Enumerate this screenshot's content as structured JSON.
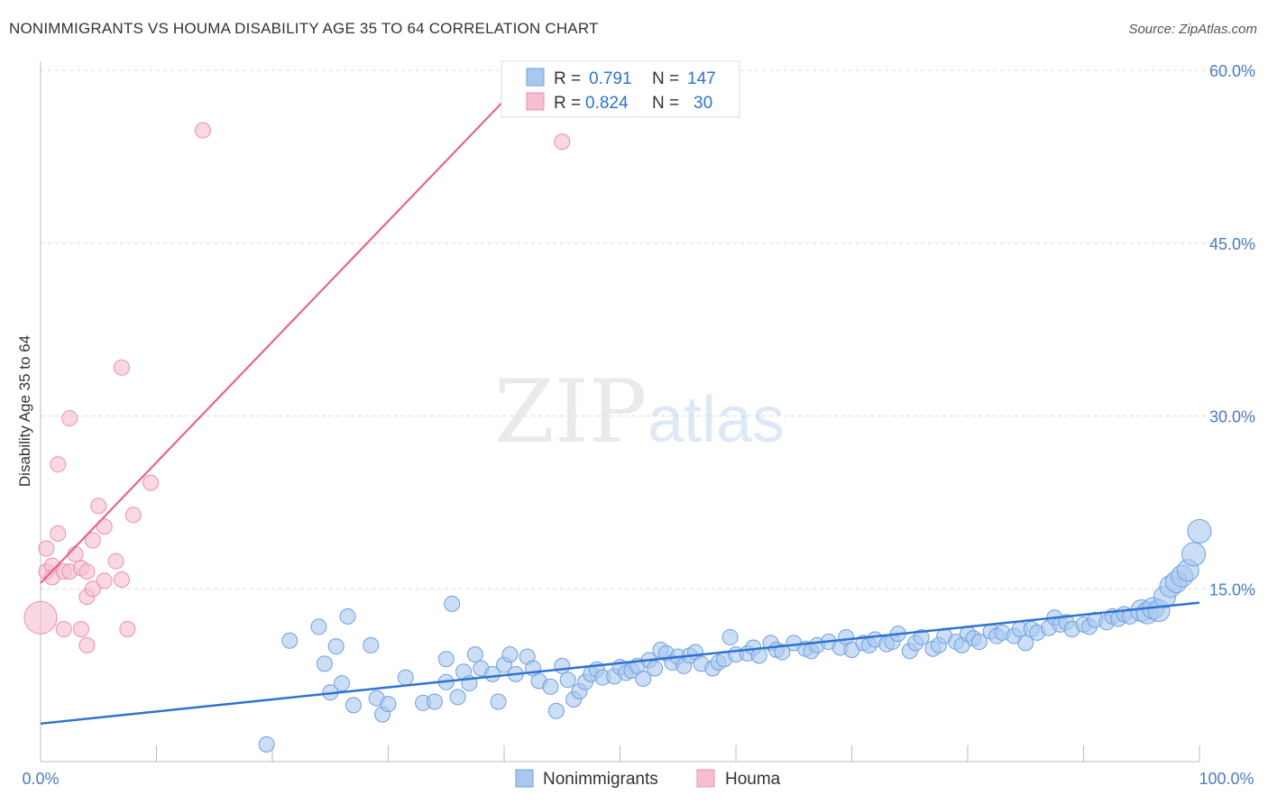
{
  "title": "NONIMMIGRANTS VS HOUMA DISABILITY AGE 35 TO 64 CORRELATION CHART",
  "source": "Source: ZipAtlas.com",
  "watermark": {
    "zip": "ZIP",
    "atlas": "atlas"
  },
  "colors": {
    "blue_fill": "#a8c8f0",
    "blue_stroke": "#6f9fde",
    "blue_line": "#2f72d2",
    "pink_fill": "#f6bed0",
    "pink_stroke": "#ea8fab",
    "pink_line": "#e5648e",
    "tick_text": "#4a7cc4",
    "grid": "#d9d9d9"
  },
  "legend": {
    "r_label": "R =",
    "n_label": "N =",
    "rows": [
      {
        "r": "0.791",
        "n": "147"
      },
      {
        "r": "0.824",
        "n": "30"
      }
    ]
  },
  "chart_data": {
    "type": "scatter",
    "title": "NONIMMIGRANTS VS HOUMA DISABILITY AGE 35 TO 64 CORRELATION CHART",
    "xlabel": "",
    "ylabel": "Disability Age 35 to 64",
    "xlim": [
      0,
      100
    ],
    "ylim": [
      0,
      60
    ],
    "x_tick_labels": [
      "0.0%",
      "100.0%"
    ],
    "y_ticks": [
      15,
      30,
      45,
      60
    ],
    "y_tick_labels": [
      "15.0%",
      "30.0%",
      "45.0%",
      "60.0%"
    ],
    "grid": true,
    "legend_position": "bottom",
    "series": [
      {
        "name": "Nonimmigrants",
        "color": "#a8c8f0",
        "trend": {
          "x": [
            0,
            100
          ],
          "y": [
            3.3,
            13.8
          ]
        },
        "points": [
          [
            19.5,
            1.5
          ],
          [
            21.5,
            10.5
          ],
          [
            24.5,
            8.5
          ],
          [
            25,
            6
          ],
          [
            24,
            11.7
          ],
          [
            25.5,
            10
          ],
          [
            26,
            6.8
          ],
          [
            26.5,
            12.6
          ],
          [
            27,
            4.9
          ],
          [
            28.5,
            10.1
          ],
          [
            29,
            5.5
          ],
          [
            29.5,
            4.1
          ],
          [
            30,
            5
          ],
          [
            31.5,
            7.3
          ],
          [
            33,
            5.1
          ],
          [
            34,
            5.2
          ],
          [
            35,
            8.9
          ],
          [
            35,
            6.9
          ],
          [
            35.5,
            13.7
          ],
          [
            36,
            5.6
          ],
          [
            36.5,
            7.8
          ],
          [
            37,
            6.8
          ],
          [
            37.5,
            9.3
          ],
          [
            38,
            8.1
          ],
          [
            39,
            7.6
          ],
          [
            39.5,
            5.2
          ],
          [
            40,
            8.4
          ],
          [
            40.5,
            9.3
          ],
          [
            41,
            7.6
          ],
          [
            42,
            9.1
          ],
          [
            42.5,
            8.1
          ],
          [
            43,
            7
          ],
          [
            44,
            6.5
          ],
          [
            44.5,
            4.4
          ],
          [
            45,
            8.3
          ],
          [
            45.5,
            7.1
          ],
          [
            46,
            5.4
          ],
          [
            46.5,
            6.1
          ],
          [
            47,
            6.9
          ],
          [
            47.5,
            7.6
          ],
          [
            48,
            8
          ],
          [
            48.5,
            7.3
          ],
          [
            49.5,
            7.4
          ],
          [
            50,
            8.2
          ],
          [
            50.5,
            7.7
          ],
          [
            51,
            7.9
          ],
          [
            51.5,
            8.3
          ],
          [
            52,
            7.2
          ],
          [
            52.5,
            8.8
          ],
          [
            53,
            8.1
          ],
          [
            53.5,
            9.7
          ],
          [
            54,
            9.4
          ],
          [
            54.5,
            8.6
          ],
          [
            55,
            9.1
          ],
          [
            55.5,
            8.3
          ],
          [
            56,
            9.2
          ],
          [
            56.5,
            9.5
          ],
          [
            57,
            8.5
          ],
          [
            58,
            8.1
          ],
          [
            58.5,
            8.6
          ],
          [
            59,
            8.9
          ],
          [
            59.5,
            10.8
          ],
          [
            60,
            9.3
          ],
          [
            61,
            9.4
          ],
          [
            61.5,
            9.9
          ],
          [
            62,
            9.2
          ],
          [
            63,
            10.3
          ],
          [
            63.5,
            9.7
          ],
          [
            64,
            9.5
          ],
          [
            65,
            10.3
          ],
          [
            66,
            9.8
          ],
          [
            66.5,
            9.6
          ],
          [
            67,
            10.1
          ],
          [
            68,
            10.4
          ],
          [
            69,
            9.9
          ],
          [
            69.5,
            10.8
          ],
          [
            70,
            9.7
          ],
          [
            71,
            10.3
          ],
          [
            71.5,
            10.1
          ],
          [
            72,
            10.6
          ],
          [
            73,
            10.2
          ],
          [
            73.5,
            10.4
          ],
          [
            74,
            11.1
          ],
          [
            75,
            9.6
          ],
          [
            75.5,
            10.3
          ],
          [
            76,
            10.8
          ],
          [
            77,
            9.8
          ],
          [
            77.5,
            10.1
          ],
          [
            78,
            10.9
          ],
          [
            79,
            10.4
          ],
          [
            79.5,
            10.1
          ],
          [
            80,
            11.1
          ],
          [
            80.5,
            10.7
          ],
          [
            81,
            10.4
          ],
          [
            82,
            11.3
          ],
          [
            82.5,
            10.9
          ],
          [
            83,
            11.2
          ],
          [
            84,
            10.9
          ],
          [
            84.5,
            11.5
          ],
          [
            85,
            10.3
          ],
          [
            85.5,
            11.5
          ],
          [
            86,
            11.2
          ],
          [
            87,
            11.6
          ],
          [
            87.5,
            12.5
          ],
          [
            88,
            11.9
          ],
          [
            88.5,
            12.1
          ],
          [
            89,
            11.5
          ],
          [
            90,
            11.9
          ],
          [
            90.5,
            11.7
          ],
          [
            91,
            12.3
          ],
          [
            92,
            12.1
          ],
          [
            92.5,
            12.6
          ],
          [
            93,
            12.4
          ],
          [
            93.5,
            12.8
          ],
          [
            94,
            12.6
          ],
          [
            95,
            13.1
          ],
          [
            95.5,
            12.9
          ],
          [
            96,
            13.3
          ],
          [
            96.5,
            13.1
          ],
          [
            97,
            14.3
          ],
          [
            97.5,
            15.2
          ],
          [
            98,
            15.6
          ],
          [
            98.5,
            16.1
          ],
          [
            99,
            16.6
          ],
          [
            99.5,
            18
          ],
          [
            100,
            20
          ]
        ]
      },
      {
        "name": "Houma",
        "color": "#f6bed0",
        "trend": {
          "x": [
            0,
            42.5
          ],
          "y": [
            15.5,
            60
          ]
        },
        "points": [
          [
            0,
            12.5
          ],
          [
            0.5,
            18.5
          ],
          [
            0.5,
            16.5
          ],
          [
            1,
            17
          ],
          [
            1,
            16
          ],
          [
            1.5,
            19.8
          ],
          [
            1.5,
            25.8
          ],
          [
            2,
            11.5
          ],
          [
            2,
            16.5
          ],
          [
            2.5,
            16.5
          ],
          [
            2.5,
            29.8
          ],
          [
            3,
            18
          ],
          [
            3.5,
            16.8
          ],
          [
            3.5,
            11.5
          ],
          [
            4,
            16.5
          ],
          [
            4,
            10.1
          ],
          [
            4,
            14.3
          ],
          [
            4.5,
            19.2
          ],
          [
            4.5,
            15
          ],
          [
            5,
            22.2
          ],
          [
            5.5,
            15.7
          ],
          [
            5.5,
            20.4
          ],
          [
            6.5,
            17.4
          ],
          [
            7,
            15.8
          ],
          [
            7,
            34.2
          ],
          [
            7.5,
            11.5
          ],
          [
            8,
            21.4
          ],
          [
            9.5,
            24.2
          ],
          [
            14,
            54.8
          ],
          [
            45,
            53.8
          ]
        ]
      }
    ]
  }
}
